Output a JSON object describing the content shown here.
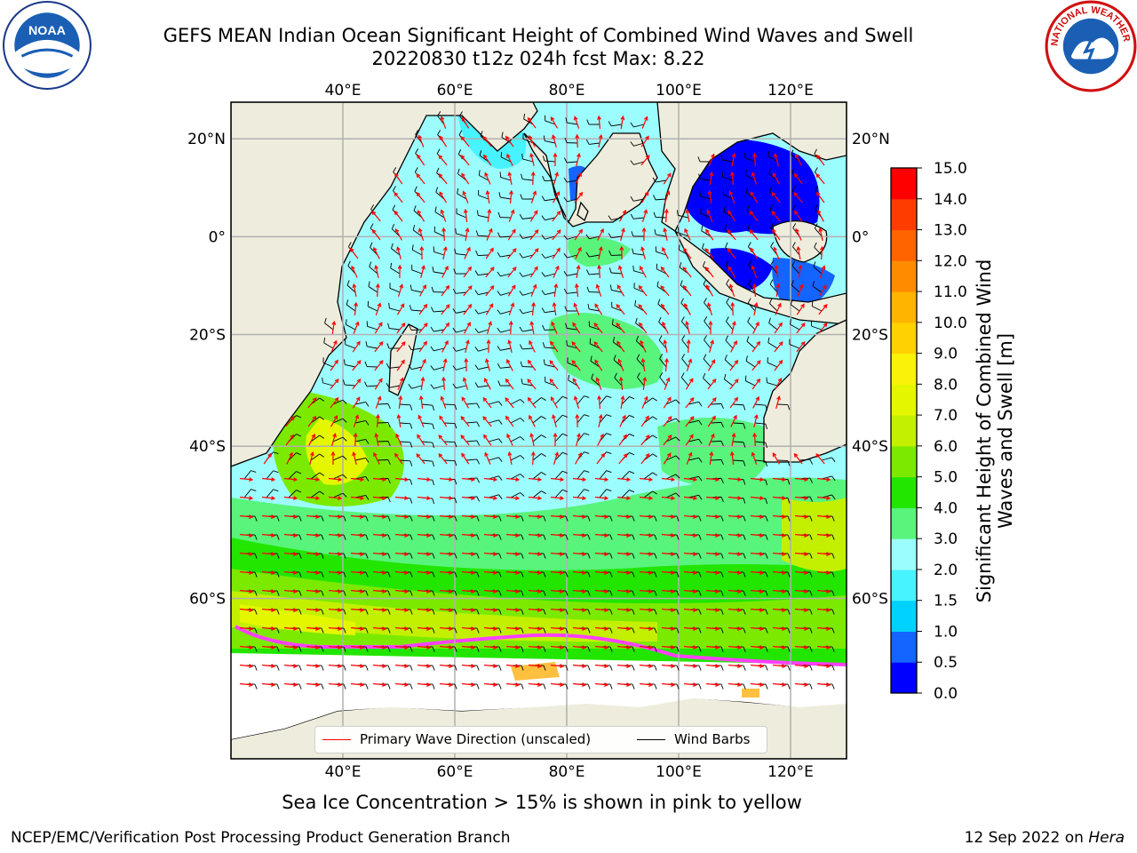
{
  "header": {
    "title_line1": "GEFS MEAN Indian Ocean Significant Height of Combined Wind Waves and Swell",
    "title_line2": "20220830 t12z 024h fcst   Max: 8.22"
  },
  "logos": {
    "left": {
      "name": "noaa-logo",
      "text": "NOAA"
    },
    "right": {
      "name": "nws-logo",
      "text": "NATIONAL WEATHER SERVICE"
    }
  },
  "map": {
    "lon_ticks": [
      "40°E",
      "60°E",
      "80°E",
      "100°E",
      "120°E"
    ],
    "lat_ticks": [
      "20°N",
      "0°",
      "20°S",
      "40°S",
      "60°S"
    ],
    "lon_range": [
      20,
      130
    ],
    "lat_range": [
      -73,
      27
    ],
    "colors": {
      "land": "#eeecdc",
      "ice": "#ffffff",
      "grid": "#b0b0b0"
    }
  },
  "colorbar": {
    "label": "Significant Height of Combined Wind Waves and Swell [m]",
    "ticks": [
      "0.0",
      "0.5",
      "1.0",
      "1.5",
      "2.0",
      "3.0",
      "4.0",
      "5.0",
      "6.0",
      "7.0",
      "8.0",
      "9.0",
      "10.0",
      "11.0",
      "12.0",
      "13.0",
      "14.0",
      "15.0"
    ],
    "colors": [
      "#0000ff",
      "#1464ff",
      "#00d2ff",
      "#47f3ff",
      "#9cfdff",
      "#58f47c",
      "#22e600",
      "#7bea00",
      "#c2f000",
      "#e4f700",
      "#fbf20a",
      "#ffd200",
      "#ffb400",
      "#ff8c00",
      "#ff6400",
      "#ff3c00",
      "#ff0000"
    ]
  },
  "legend": {
    "wave_direction": "Primary Wave Direction (unscaled)",
    "wave_direction_color": "#ff0000",
    "wind_barbs": "Wind Barbs",
    "wind_barbs_color": "#000000"
  },
  "subtitle": "Sea Ice Concentration > 15% is shown in pink to yellow",
  "footer": {
    "left": "NCEP/EMC/Verification Post Processing Product Generation Branch",
    "right_date": "12 Sep 2022 on",
    "right_host": "Hera"
  }
}
